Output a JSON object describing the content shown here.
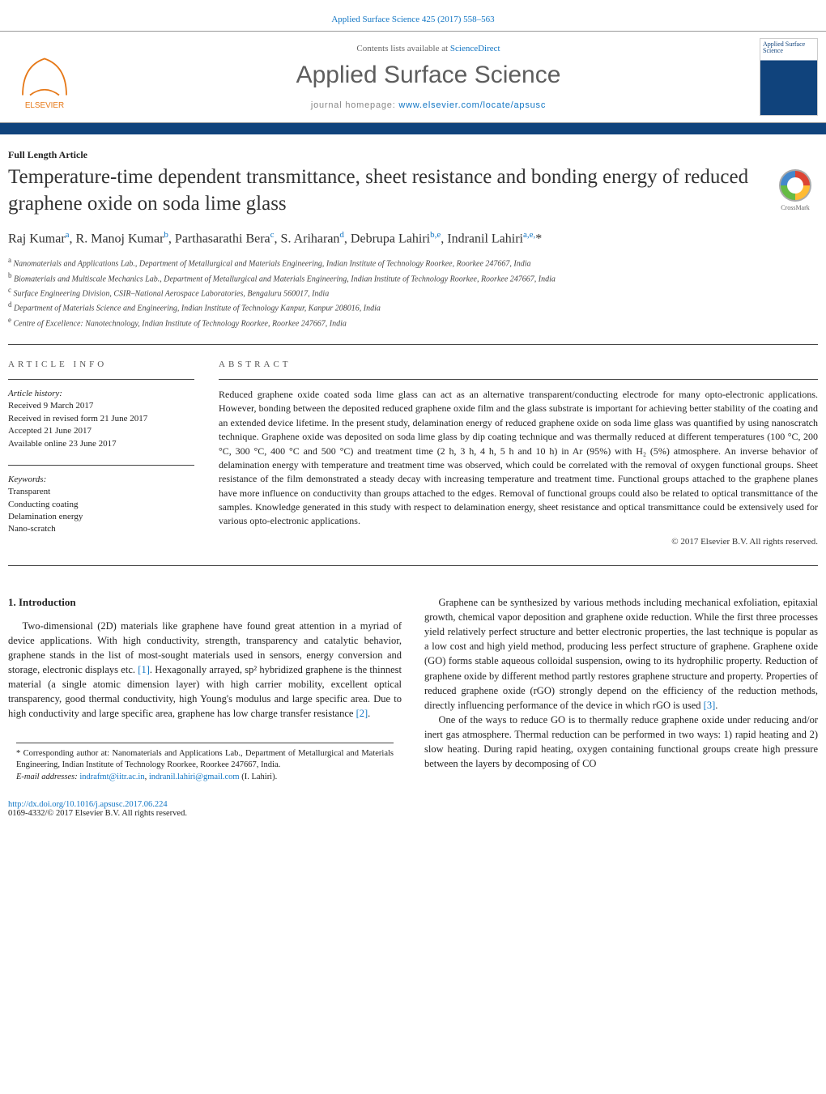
{
  "header": {
    "citation_link": "Applied Surface Science 425 (2017) 558–563",
    "contents_prefix": "Contents lists available at ",
    "contents_link": "ScienceDirect",
    "journal_name": "Applied Surface Science",
    "homepage_prefix": "journal homepage: ",
    "homepage_url": "www.elsevier.com/locate/apsusc",
    "cover_title": "Applied Surface Science"
  },
  "article": {
    "type": "Full Length Article",
    "title": "Temperature-time dependent transmittance, sheet resistance and bonding energy of reduced graphene oxide on soda lime glass",
    "crossmark_label": "CrossMark",
    "authors_html": "Raj Kumar<sup>a</sup>, R. Manoj Kumar<sup>b</sup>, Parthasarathi Bera<sup>c</sup>, S. Ariharan<sup>d</sup>, Debrupa Lahiri<sup>b,e</sup>, Indranil Lahiri<sup>a,e,</sup>*",
    "affiliations": [
      "a Nanomaterials and Applications Lab., Department of Metallurgical and Materials Engineering, Indian Institute of Technology Roorkee, Roorkee 247667, India",
      "b Biomaterials and Multiscale Mechanics Lab., Department of Metallurgical and Materials Engineering, Indian Institute of Technology Roorkee, Roorkee 247667, India",
      "c Surface Engineering Division, CSIR–National Aerospace Laboratories, Bengaluru 560017, India",
      "d Department of Materials Science and Engineering, Indian Institute of Technology Kanpur, Kanpur 208016, India",
      "e Centre of Excellence: Nanotechnology, Indian Institute of Technology Roorkee, Roorkee 247667, India"
    ]
  },
  "info": {
    "head": "ARTICLE INFO",
    "history_label": "Article history:",
    "history": [
      "Received 9 March 2017",
      "Received in revised form 21 June 2017",
      "Accepted 21 June 2017",
      "Available online 23 June 2017"
    ],
    "keywords_label": "Keywords:",
    "keywords": [
      "Transparent",
      "Conducting coating",
      "Delamination energy",
      "Nano-scratch"
    ]
  },
  "abstract": {
    "head": "ABSTRACT",
    "text": "Reduced graphene oxide coated soda lime glass can act as an alternative transparent/conducting electrode for many opto-electronic applications. However, bonding between the deposited reduced graphene oxide film and the glass substrate is important for achieving better stability of the coating and an extended device lifetime. In the present study, delamination energy of reduced graphene oxide on soda lime glass was quantified by using nanoscratch technique. Graphene oxide was deposited on soda lime glass by dip coating technique and was thermally reduced at different temperatures (100 °C, 200 °C, 300 °C, 400 °C and 500 °C) and treatment time (2 h, 3 h, 4 h, 5 h and 10 h) in Ar (95%) with H₂ (5%) atmosphere. An inverse behavior of delamination energy with temperature and treatment time was observed, which could be correlated with the removal of oxygen functional groups. Sheet resistance of the film demonstrated a steady decay with increasing temperature and treatment time. Functional groups attached to the graphene planes have more influence on conductivity than groups attached to the edges. Removal of functional groups could also be related to optical transmittance of the samples. Knowledge generated in this study with respect to delamination energy, sheet resistance and optical transmittance could be extensively used for various opto-electronic applications.",
    "copyright": "© 2017 Elsevier B.V. All rights reserved."
  },
  "body": {
    "section_num": "1.",
    "section_title": "Introduction",
    "col1_p1": "Two-dimensional (2D) materials like graphene have found great attention in a myriad of device applications. With high conductivity, strength, transparency and catalytic behavior, graphene stands in the list of most-sought materials used in sensors, energy conversion and storage, electronic displays etc. [1]. Hexagonally arrayed, sp² hybridized graphene is the thinnest material (a single atomic dimension layer) with high carrier mobility, excellent optical transparency, good thermal conductivity, high Young's modulus and large specific area. Due to high conductivity and large specific area, graphene has low charge transfer resistance [2].",
    "col2_p1": "Graphene can be synthesized by various methods including mechanical exfoliation, epitaxial growth, chemical vapor deposition and graphene oxide reduction. While the first three processes yield relatively perfect structure and better electronic properties, the last technique is popular as a low cost and high yield method, producing less perfect structure of graphene. Graphene oxide (GO) forms stable aqueous colloidal suspension, owing to its hydrophilic property. Reduction of graphene oxide by different method partly restores graphene structure and property. Properties of reduced graphene oxide (rGO) strongly depend on the efficiency of the reduction methods, directly influencing performance of the device in which rGO is used [3].",
    "col2_p2": "One of the ways to reduce GO is to thermally reduce graphene oxide under reducing and/or inert gas atmosphere. Thermal reduction can be performed in two ways: 1) rapid heating and 2) slow heating. During rapid heating, oxygen containing functional groups create high pressure between the layers by decomposing of CO"
  },
  "footnotes": {
    "corr": "* Corresponding author at: Nanomaterials and Applications Lab., Department of Metallurgical and Materials Engineering, Indian Institute of Technology Roorkee, Roorkee 247667, India.",
    "email_label": "E-mail addresses: ",
    "email1": "indrafmt@iitr.ac.in",
    "email_sep": ", ",
    "email2": "indranil.lahiri@gmail.com",
    "email_suffix": " (I. Lahiri)."
  },
  "doi": {
    "url": "http://dx.doi.org/10.1016/j.apsusc.2017.06.224",
    "issn_line": "0169-4332/© 2017 Elsevier B.V. All rights reserved."
  },
  "colors": {
    "accent": "#10437c",
    "link": "#1276c4",
    "text": "#222222",
    "muted": "#5d5d5d"
  }
}
